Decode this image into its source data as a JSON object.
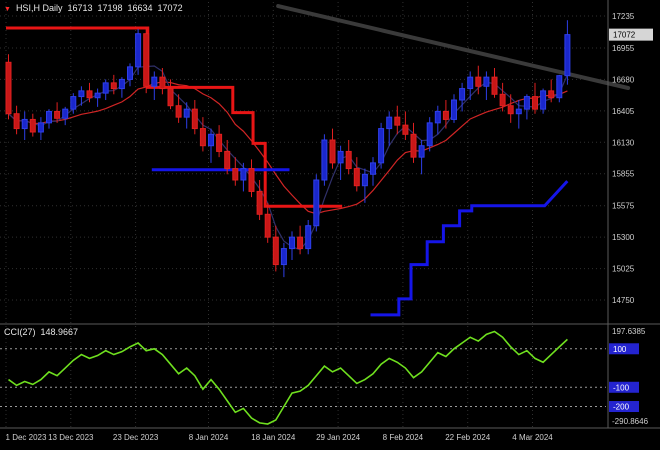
{
  "title": {
    "marker_glyph": "▼",
    "symbol": "HSI,H Daily",
    "open": "16713",
    "high": "17198",
    "low": "16634",
    "close": "17072"
  },
  "colors": {
    "background": "#000000",
    "bull_candle": "#1a27cc",
    "bear_candle": "#c81717",
    "cci_line": "#6fe01f",
    "stop_line_red": "#e81515",
    "support_line_blue": "#1515e8",
    "level_tag_blue": "#2424d0"
  },
  "chart_data": {
    "type": "candlestick",
    "symbol": "HSI",
    "timeframe": "Daily",
    "price_axis_labels": [
      17235,
      16955,
      16680,
      16405,
      16130,
      15855,
      15575,
      15300,
      15025,
      14750
    ],
    "current_price": 17072,
    "date_axis": {
      "labels": [
        "1 Dec 2023",
        "13 Dec 2023",
        "23 Dec 2023",
        "8 Jan 2024",
        "18 Jan 2024",
        "29 Jan 2024",
        "8 Feb 2024",
        "22 Feb 2024",
        "4 Mar 2024"
      ],
      "indices": [
        0,
        8,
        16,
        25,
        33,
        41,
        49,
        57,
        65
      ]
    },
    "ma_fast_period": 4,
    "ma_slow_period": 12,
    "candles": [
      [
        16830,
        16900,
        16330,
        16380
      ],
      [
        16380,
        16450,
        16200,
        16250
      ],
      [
        16250,
        16400,
        16150,
        16330
      ],
      [
        16330,
        16380,
        16180,
        16220
      ],
      [
        16220,
        16350,
        16150,
        16300
      ],
      [
        16300,
        16420,
        16250,
        16400
      ],
      [
        16400,
        16480,
        16300,
        16340
      ],
      [
        16340,
        16440,
        16280,
        16420
      ],
      [
        16420,
        16560,
        16380,
        16530
      ],
      [
        16530,
        16620,
        16450,
        16580
      ],
      [
        16580,
        16650,
        16480,
        16520
      ],
      [
        16520,
        16600,
        16440,
        16560
      ],
      [
        16560,
        16680,
        16500,
        16650
      ],
      [
        16650,
        16720,
        16550,
        16600
      ],
      [
        16600,
        16700,
        16520,
        16680
      ],
      [
        16680,
        16820,
        16620,
        16790
      ],
      [
        16790,
        17120,
        16720,
        17080
      ],
      [
        17080,
        17140,
        16560,
        16620
      ],
      [
        16620,
        16750,
        16500,
        16700
      ],
      [
        16700,
        16780,
        16550,
        16600
      ],
      [
        16600,
        16680,
        16420,
        16450
      ],
      [
        16450,
        16550,
        16300,
        16350
      ],
      [
        16350,
        16480,
        16250,
        16420
      ],
      [
        16420,
        16500,
        16200,
        16250
      ],
      [
        16250,
        16350,
        16050,
        16100
      ],
      [
        16100,
        16250,
        15950,
        16200
      ],
      [
        16200,
        16280,
        16000,
        16050
      ],
      [
        16050,
        16150,
        15850,
        15900
      ],
      [
        15900,
        16000,
        15750,
        15800
      ],
      [
        15800,
        15950,
        15700,
        15900
      ],
      [
        15900,
        15980,
        15650,
        15700
      ],
      [
        15700,
        15800,
        15450,
        15500
      ],
      [
        15500,
        15600,
        15250,
        15300
      ],
      [
        15300,
        15400,
        15000,
        15060
      ],
      [
        15060,
        15250,
        14950,
        15200
      ],
      [
        15200,
        15350,
        15100,
        15300
      ],
      [
        15300,
        15400,
        15150,
        15200
      ],
      [
        15200,
        15450,
        15150,
        15400
      ],
      [
        15400,
        15850,
        15350,
        15800
      ],
      [
        15800,
        16200,
        15750,
        16150
      ],
      [
        16150,
        16250,
        15900,
        15950
      ],
      [
        15950,
        16100,
        15800,
        16050
      ],
      [
        16050,
        16150,
        15850,
        15900
      ],
      [
        15900,
        16000,
        15700,
        15750
      ],
      [
        15750,
        15900,
        15600,
        15850
      ],
      [
        15850,
        16000,
        15750,
        15950
      ],
      [
        15950,
        16300,
        15900,
        16250
      ],
      [
        16250,
        16400,
        16100,
        16350
      ],
      [
        16350,
        16450,
        16200,
        16280
      ],
      [
        16280,
        16400,
        16150,
        16200
      ],
      [
        16200,
        16300,
        15950,
        16000
      ],
      [
        16000,
        16150,
        15850,
        16100
      ],
      [
        16100,
        16350,
        16050,
        16300
      ],
      [
        16300,
        16450,
        16200,
        16400
      ],
      [
        16400,
        16500,
        16250,
        16330
      ],
      [
        16330,
        16550,
        16300,
        16500
      ],
      [
        16500,
        16650,
        16400,
        16600
      ],
      [
        16600,
        16750,
        16500,
        16700
      ],
      [
        16700,
        16800,
        16550,
        16620
      ],
      [
        16620,
        16750,
        16500,
        16700
      ],
      [
        16700,
        16780,
        16520,
        16550
      ],
      [
        16550,
        16650,
        16400,
        16450
      ],
      [
        16450,
        16550,
        16300,
        16380
      ],
      [
        16380,
        16500,
        16250,
        16420
      ],
      [
        16420,
        16550,
        16330,
        16530
      ],
      [
        16530,
        16650,
        16380,
        16420
      ],
      [
        16420,
        16600,
        16380,
        16580
      ],
      [
        16580,
        16680,
        16480,
        16520
      ],
      [
        16520,
        16720,
        16480,
        16713
      ],
      [
        16713,
        17198,
        16634,
        17072
      ]
    ],
    "overlays": {
      "trendline": {
        "x1_idx": 33.6,
        "p1": 17322,
        "x2_idx": 76.8,
        "p2": 16605
      },
      "red_stop_line": [
        [
          0,
          17130
        ],
        [
          17.5,
          17130
        ],
        [
          17.5,
          16610
        ],
        [
          28,
          16610
        ],
        [
          28,
          16390
        ],
        [
          30.5,
          16390
        ],
        [
          30.5,
          16120
        ],
        [
          32,
          16120
        ],
        [
          32,
          15570
        ],
        [
          41.5,
          15570
        ]
      ],
      "blue_support_line_1": [
        [
          18,
          15890
        ],
        [
          35,
          15890
        ]
      ],
      "blue_support_line_2": [
        [
          45,
          14620
        ],
        [
          48.5,
          14620
        ],
        [
          48.5,
          14760
        ],
        [
          50,
          14760
        ],
        [
          50,
          15060
        ],
        [
          52,
          15060
        ],
        [
          52,
          15260
        ],
        [
          54,
          15260
        ],
        [
          54,
          15400
        ],
        [
          56,
          15400
        ],
        [
          56,
          15530
        ],
        [
          57.5,
          15530
        ],
        [
          57.5,
          15575
        ],
        [
          66.5,
          15575
        ],
        [
          69.3,
          15790
        ]
      ]
    },
    "cci": {
      "name": "CCI(27)",
      "value": "148.9667",
      "max_label": "197.6385",
      "min_label": "-290.8646",
      "max": 197.6385,
      "min": -290.8646,
      "levels": [
        100,
        -100,
        -200
      ],
      "values": [
        -60,
        -90,
        -70,
        -85,
        -60,
        -20,
        -40,
        0,
        40,
        70,
        50,
        65,
        90,
        70,
        85,
        110,
        130,
        90,
        100,
        70,
        20,
        -30,
        0,
        -40,
        -110,
        -60,
        -110,
        -170,
        -230,
        -210,
        -260,
        -285,
        -290.8646,
        -270,
        -200,
        -130,
        -120,
        -90,
        -40,
        10,
        -20,
        0,
        -40,
        -80,
        -60,
        -30,
        20,
        50,
        30,
        0,
        -50,
        -20,
        30,
        80,
        60,
        100,
        130,
        160,
        140,
        175,
        190,
        160,
        110,
        70,
        90,
        50,
        30,
        70,
        110,
        148.9667
      ]
    }
  }
}
